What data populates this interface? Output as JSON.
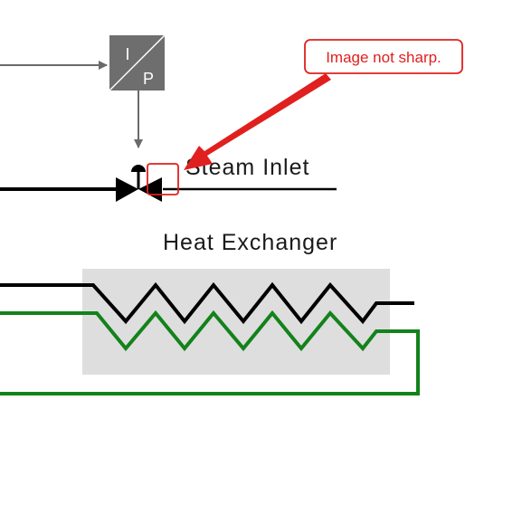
{
  "transducer": {
    "input_letter": "I",
    "output_letter": "P",
    "fill_color": "#6e6e6e"
  },
  "labels": {
    "steam_inlet": "Steam Inlet",
    "heat_exchanger": "Heat Exchanger"
  },
  "annotation": {
    "text": "Image not sharp.",
    "color": "#e0201e"
  },
  "colors": {
    "signal_line": "#6a6a6a",
    "process_line": "#000000",
    "return_line": "#13821b",
    "exchanger_body": "#dedede"
  }
}
